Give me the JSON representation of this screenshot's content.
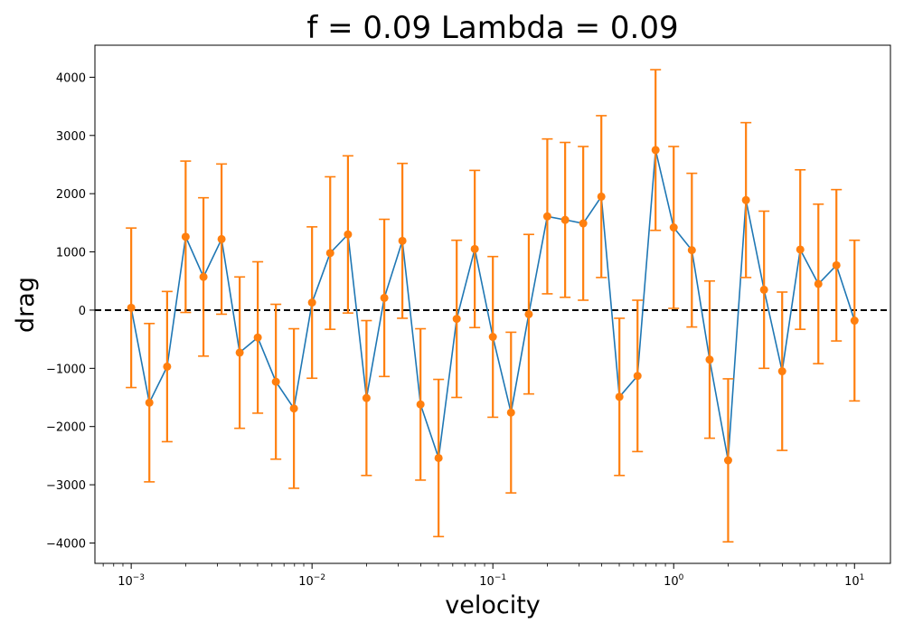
{
  "chart_data": {
    "type": "scatter",
    "title": "f = 0.09 Lambda = 0.09",
    "xlabel": "velocity",
    "ylabel": "drag",
    "xscale": "log",
    "xlim": [
      0.00063,
      15.8
    ],
    "ylim": [
      -4350,
      4550
    ],
    "grid": false,
    "reference_line": {
      "y": 0,
      "style": "dashed",
      "color": "#000000"
    },
    "x_ticks": [
      {
        "value": 0.001,
        "base": "10",
        "exp": "−3"
      },
      {
        "value": 0.01,
        "base": "10",
        "exp": "−2"
      },
      {
        "value": 0.1,
        "base": "10",
        "exp": "−1"
      },
      {
        "value": 1,
        "base": "10",
        "exp": "0"
      },
      {
        "value": 10,
        "base": "10",
        "exp": "1"
      }
    ],
    "y_ticks": [
      {
        "value": -4000,
        "label": "−4000"
      },
      {
        "value": -3000,
        "label": "−3000"
      },
      {
        "value": -2000,
        "label": "−2000"
      },
      {
        "value": -1000,
        "label": "−1000"
      },
      {
        "value": 0,
        "label": "0"
      },
      {
        "value": 1000,
        "label": "1000"
      },
      {
        "value": 2000,
        "label": "2000"
      },
      {
        "value": 3000,
        "label": "3000"
      },
      {
        "value": 4000,
        "label": "4000"
      }
    ],
    "series": [
      {
        "line_color": "#1f77b4",
        "marker_color": "#ff7f0e",
        "error_color": "#ff7f0e",
        "x": [
          0.001,
          0.00126,
          0.00158,
          0.002,
          0.00251,
          0.00316,
          0.00398,
          0.00501,
          0.00631,
          0.00794,
          0.01,
          0.0126,
          0.0158,
          0.02,
          0.0251,
          0.0316,
          0.0398,
          0.0501,
          0.0631,
          0.0794,
          0.1,
          0.126,
          0.158,
          0.2,
          0.251,
          0.316,
          0.398,
          0.501,
          0.631,
          0.794,
          1.0,
          1.26,
          1.58,
          2.0,
          2.51,
          3.16,
          3.98,
          5.01,
          6.31,
          7.94,
          10.0
        ],
        "y": [
          40,
          -1590,
          -970,
          1260,
          570,
          1220,
          -730,
          -470,
          -1230,
          -1690,
          130,
          980,
          1300,
          -1510,
          210,
          1190,
          -1620,
          -2540,
          -150,
          1050,
          -460,
          -1760,
          -70,
          1610,
          1550,
          1490,
          1950,
          -1490,
          -1130,
          2750,
          1420,
          1030,
          -850,
          -2580,
          1890,
          350,
          -1050,
          1040,
          450,
          770,
          -180
        ],
        "yerr": [
          1370,
          1360,
          1290,
          1300,
          1360,
          1290,
          1300,
          1300,
          1330,
          1370,
          1300,
          1310,
          1350,
          1330,
          1350,
          1330,
          1300,
          1350,
          1350,
          1350,
          1380,
          1380,
          1370,
          1330,
          1330,
          1320,
          1390,
          1350,
          1300,
          1380,
          1390,
          1320,
          1350,
          1400,
          1330,
          1350,
          1360,
          1370,
          1370,
          1300,
          1380
        ]
      }
    ]
  }
}
